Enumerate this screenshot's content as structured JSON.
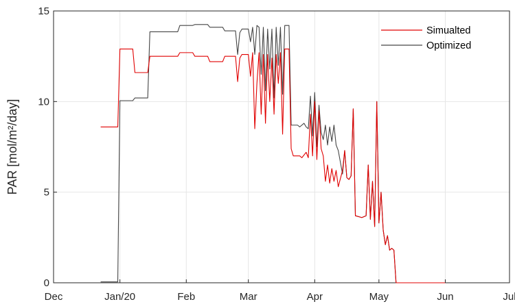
{
  "chart_data": {
    "type": "line",
    "title": "",
    "xlabel": "",
    "ylabel": "PAR [mol/m²/day]",
    "x_tick_labels": [
      "Dec",
      "Jan/20",
      "Feb",
      "Mar",
      "Apr",
      "May",
      "Jun",
      "Jul"
    ],
    "x_tick_dates": [
      "2019-12-01",
      "2020-01-01",
      "2020-02-01",
      "2020-03-01",
      "2020-04-01",
      "2020-05-01",
      "2020-06-01",
      "2020-07-01"
    ],
    "xlim": [
      "2019-12-01",
      "2020-07-01"
    ],
    "y_ticks": [
      0,
      5,
      10,
      15
    ],
    "ylim": [
      0,
      15
    ],
    "grid": true,
    "legend_position": "top-right",
    "colors": {
      "Simualted": "#e00000",
      "Optimized": "#444444"
    },
    "series": [
      {
        "name": "Simualted",
        "color": "#e00000",
        "points": [
          [
            "2019-12-23",
            8.6
          ],
          [
            "2019-12-31",
            8.6
          ],
          [
            "2020-01-01",
            12.9
          ],
          [
            "2020-01-07",
            12.9
          ],
          [
            "2020-01-08",
            11.6
          ],
          [
            "2020-01-14",
            11.6
          ],
          [
            "2020-01-15",
            12.5
          ],
          [
            "2020-01-28",
            12.5
          ],
          [
            "2020-01-29",
            12.7
          ],
          [
            "2020-02-04",
            12.7
          ],
          [
            "2020-02-05",
            12.5
          ],
          [
            "2020-02-11",
            12.5
          ],
          [
            "2020-02-12",
            12.2
          ],
          [
            "2020-02-18",
            12.2
          ],
          [
            "2020-02-19",
            12.5
          ],
          [
            "2020-02-24",
            12.5
          ],
          [
            "2020-02-25",
            11.1
          ],
          [
            "2020-02-26",
            12.4
          ],
          [
            "2020-02-27",
            12.6
          ],
          [
            "2020-03-01",
            12.6
          ],
          [
            "2020-03-02",
            11.4
          ],
          [
            "2020-03-03",
            12.7
          ],
          [
            "2020-03-04",
            8.5
          ],
          [
            "2020-03-05",
            11.0
          ],
          [
            "2020-03-06",
            12.7
          ],
          [
            "2020-03-07",
            9.3
          ],
          [
            "2020-03-08",
            12.6
          ],
          [
            "2020-03-09",
            8.8
          ],
          [
            "2020-03-10",
            12.6
          ],
          [
            "2020-03-11",
            10.0
          ],
          [
            "2020-03-12",
            12.4
          ],
          [
            "2020-03-13",
            9.3
          ],
          [
            "2020-03-14",
            12.6
          ],
          [
            "2020-03-15",
            11.0
          ],
          [
            "2020-03-16",
            12.7
          ],
          [
            "2020-03-17",
            8.2
          ],
          [
            "2020-03-18",
            12.9
          ],
          [
            "2020-03-20",
            12.9
          ],
          [
            "2020-03-21",
            7.4
          ],
          [
            "2020-03-22",
            7.0
          ],
          [
            "2020-03-25",
            7.0
          ],
          [
            "2020-03-26",
            6.9
          ],
          [
            "2020-03-28",
            7.2
          ],
          [
            "2020-03-29",
            6.9
          ],
          [
            "2020-03-30",
            9.3
          ],
          [
            "2020-03-31",
            7.0
          ],
          [
            "2020-04-01",
            10.0
          ],
          [
            "2020-04-02",
            6.8
          ],
          [
            "2020-04-03",
            9.5
          ],
          [
            "2020-04-04",
            7.4
          ],
          [
            "2020-04-05",
            7.0
          ],
          [
            "2020-04-06",
            5.6
          ],
          [
            "2020-04-07",
            6.5
          ],
          [
            "2020-04-08",
            5.5
          ],
          [
            "2020-04-09",
            6.3
          ],
          [
            "2020-04-10",
            5.6
          ],
          [
            "2020-04-11",
            6.2
          ],
          [
            "2020-04-12",
            5.3
          ],
          [
            "2020-04-14",
            6.2
          ],
          [
            "2020-04-15",
            7.3
          ],
          [
            "2020-04-16",
            5.8
          ],
          [
            "2020-04-17",
            5.7
          ],
          [
            "2020-04-18",
            5.9
          ],
          [
            "2020-04-19",
            9.6
          ],
          [
            "2020-04-20",
            3.7
          ],
          [
            "2020-04-23",
            3.6
          ],
          [
            "2020-04-25",
            3.7
          ],
          [
            "2020-04-26",
            6.5
          ],
          [
            "2020-04-27",
            3.5
          ],
          [
            "2020-04-28",
            5.6
          ],
          [
            "2020-04-29",
            3.1
          ],
          [
            "2020-04-30",
            10.0
          ],
          [
            "2020-05-01",
            3.3
          ],
          [
            "2020-05-02",
            5.0
          ],
          [
            "2020-05-03",
            2.9
          ],
          [
            "2020-05-04",
            2.1
          ],
          [
            "2020-05-05",
            2.6
          ],
          [
            "2020-05-06",
            1.8
          ],
          [
            "2020-05-07",
            1.9
          ],
          [
            "2020-05-08",
            1.8
          ],
          [
            "2020-05-09",
            0
          ],
          [
            "2020-06-01",
            0
          ]
        ]
      },
      {
        "name": "Optimized",
        "color": "#444444",
        "points": [
          [
            "2019-12-23",
            0.05
          ],
          [
            "2019-12-31",
            0.05
          ],
          [
            "2020-01-01",
            10.05
          ],
          [
            "2020-01-07",
            10.05
          ],
          [
            "2020-01-08",
            10.2
          ],
          [
            "2020-01-14",
            10.2
          ],
          [
            "2020-01-15",
            13.85
          ],
          [
            "2020-01-28",
            13.85
          ],
          [
            "2020-01-29",
            14.2
          ],
          [
            "2020-02-04",
            14.2
          ],
          [
            "2020-02-05",
            14.25
          ],
          [
            "2020-02-11",
            14.25
          ],
          [
            "2020-02-12",
            14.1
          ],
          [
            "2020-02-18",
            14.1
          ],
          [
            "2020-02-19",
            13.9
          ],
          [
            "2020-02-24",
            13.9
          ],
          [
            "2020-02-25",
            12.6
          ],
          [
            "2020-02-26",
            13.8
          ],
          [
            "2020-02-27",
            14.0
          ],
          [
            "2020-03-01",
            14.0
          ],
          [
            "2020-03-02",
            13.3
          ],
          [
            "2020-03-03",
            14.1
          ],
          [
            "2020-03-04",
            12.6
          ],
          [
            "2020-03-05",
            14.2
          ],
          [
            "2020-03-06",
            14.1
          ],
          [
            "2020-03-07",
            11.5
          ],
          [
            "2020-03-08",
            14.1
          ],
          [
            "2020-03-09",
            10.6
          ],
          [
            "2020-03-10",
            14.0
          ],
          [
            "2020-03-11",
            11.8
          ],
          [
            "2020-03-12",
            14.0
          ],
          [
            "2020-03-13",
            10.2
          ],
          [
            "2020-03-14",
            14.1
          ],
          [
            "2020-03-15",
            12.0
          ],
          [
            "2020-03-16",
            14.1
          ],
          [
            "2020-03-17",
            10.4
          ],
          [
            "2020-03-18",
            14.2
          ],
          [
            "2020-03-20",
            14.2
          ],
          [
            "2020-03-21",
            8.7
          ],
          [
            "2020-03-24",
            8.7
          ],
          [
            "2020-03-25",
            8.6
          ],
          [
            "2020-03-27",
            8.8
          ],
          [
            "2020-03-28",
            8.6
          ],
          [
            "2020-03-29",
            8.5
          ],
          [
            "2020-03-30",
            10.3
          ],
          [
            "2020-03-31",
            8.1
          ],
          [
            "2020-04-01",
            10.5
          ],
          [
            "2020-04-02",
            7.5
          ],
          [
            "2020-04-03",
            9.8
          ],
          [
            "2020-04-04",
            8.3
          ],
          [
            "2020-04-05",
            7.9
          ],
          [
            "2020-04-06",
            8.7
          ],
          [
            "2020-04-07",
            7.6
          ],
          [
            "2020-04-08",
            8.6
          ],
          [
            "2020-04-09",
            7.8
          ],
          [
            "2020-04-10",
            8.7
          ],
          [
            "2020-04-11",
            7.6
          ],
          [
            "2020-04-12",
            7.3
          ],
          [
            "2020-04-14",
            6.0
          ],
          [
            "2020-04-15",
            7.3
          ],
          [
            "2020-04-16",
            5.8
          ],
          [
            "2020-04-17",
            5.7
          ],
          [
            "2020-04-18",
            5.9
          ],
          [
            "2020-04-19",
            9.6
          ],
          [
            "2020-04-20",
            3.7
          ],
          [
            "2020-04-23",
            3.6
          ],
          [
            "2020-04-25",
            3.7
          ],
          [
            "2020-04-26",
            6.5
          ],
          [
            "2020-04-27",
            3.5
          ],
          [
            "2020-04-28",
            5.6
          ],
          [
            "2020-04-29",
            3.1
          ],
          [
            "2020-04-30",
            10.0
          ],
          [
            "2020-05-01",
            3.3
          ],
          [
            "2020-05-02",
            5.0
          ],
          [
            "2020-05-03",
            2.9
          ],
          [
            "2020-05-04",
            2.1
          ],
          [
            "2020-05-05",
            2.6
          ],
          [
            "2020-05-06",
            1.8
          ],
          [
            "2020-05-07",
            1.9
          ],
          [
            "2020-05-08",
            1.8
          ],
          [
            "2020-05-09",
            0
          ],
          [
            "2020-06-01",
            0
          ]
        ]
      }
    ]
  }
}
